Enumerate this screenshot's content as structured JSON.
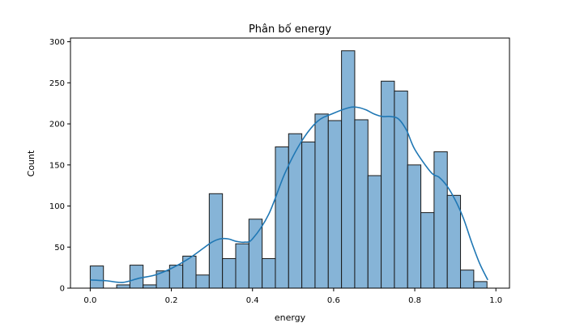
{
  "chart_data": {
    "type": "bar",
    "title": "Phân bố energy",
    "xlabel": "energy",
    "ylabel": "Count",
    "xlim": [
      -0.0487,
      1.0335
    ],
    "ylim": [
      0,
      304.5
    ],
    "xticks": [
      0.0,
      0.2,
      0.4,
      0.6,
      0.8,
      1.0
    ],
    "xtick_labels": [
      "0.0",
      "0.2",
      "0.4",
      "0.6",
      "0.8",
      "1.0"
    ],
    "yticks": [
      0,
      50,
      100,
      150,
      200,
      250,
      300
    ],
    "ytick_labels": [
      "0",
      "50",
      "100",
      "150",
      "200",
      "250",
      "300"
    ],
    "grid": false,
    "bins": {
      "start": 0.0,
      "width": 0.0326,
      "counts": [
        27,
        0,
        4,
        28,
        4,
        21,
        28,
        39,
        16,
        115,
        36,
        54,
        84,
        36,
        172,
        188,
        178,
        212,
        204,
        289,
        205,
        137,
        252,
        240,
        150,
        92,
        166,
        113,
        22,
        8
      ]
    },
    "kde": {
      "x": [
        0.0,
        0.04,
        0.08,
        0.12,
        0.16,
        0.2,
        0.24,
        0.28,
        0.3,
        0.32,
        0.34,
        0.36,
        0.38,
        0.4,
        0.44,
        0.48,
        0.52,
        0.56,
        0.6,
        0.64,
        0.66,
        0.68,
        0.7,
        0.72,
        0.74,
        0.76,
        0.78,
        0.8,
        0.84,
        0.86,
        0.88,
        0.9,
        0.92,
        0.94,
        0.96,
        0.98
      ],
      "y": [
        10,
        9,
        7,
        12,
        16,
        24,
        35,
        49,
        56,
        60,
        60,
        57,
        56,
        60,
        90,
        140,
        178,
        203,
        213,
        220,
        220,
        217,
        212,
        209,
        209,
        206,
        192,
        169,
        141,
        135,
        124,
        107,
        85,
        56,
        30,
        10
      ]
    },
    "colors": {
      "bar_fill": "#86b4d7",
      "bar_edge": "#1a1a1a",
      "kde_line": "#1f77b4"
    }
  }
}
